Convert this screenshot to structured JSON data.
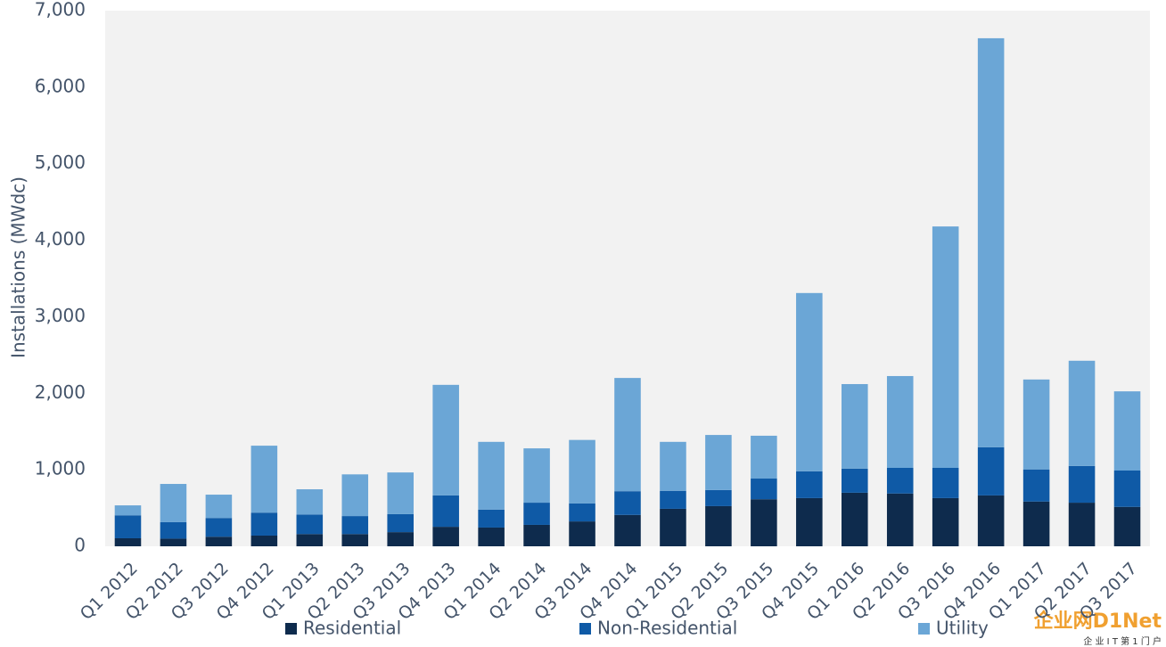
{
  "chart_data": {
    "type": "stacked_bar",
    "y_label": "Installations (MWdc)",
    "categories": [
      "Q1 2012",
      "Q2 2012",
      "Q3 2012",
      "Q4 2012",
      "Q1 2013",
      "Q2 2013",
      "Q3 2013",
      "Q4 2013",
      "Q1 2014",
      "Q2 2014",
      "Q3 2014",
      "Q4 2014",
      "Q1 2015",
      "Q2 2015",
      "Q3 2015",
      "Q4 2015",
      "Q1 2016",
      "Q2 2016",
      "Q3 2016",
      "Q4 2016",
      "Q1 2017",
      "Q2 2017",
      "Q3 2017"
    ],
    "series": [
      {
        "name": "Residential",
        "color": "#0e2b4d",
        "values": [
          105,
          100,
          125,
          140,
          160,
          160,
          185,
          255,
          245,
          280,
          325,
          410,
          490,
          525,
          615,
          630,
          700,
          690,
          630,
          665,
          585,
          570,
          515
        ]
      },
      {
        "name": "Non-Residential",
        "color": "#0f5aa6",
        "values": [
          300,
          215,
          245,
          300,
          255,
          235,
          235,
          410,
          235,
          290,
          235,
          310,
          235,
          210,
          270,
          350,
          315,
          335,
          395,
          630,
          420,
          480,
          475
        ]
      },
      {
        "name": "Utility",
        "color": "#6ba6d6",
        "values": [
          130,
          500,
          305,
          875,
          330,
          545,
          545,
          1445,
          885,
          710,
          830,
          1480,
          640,
          720,
          560,
          2330,
          1105,
          1200,
          3155,
          5345,
          1175,
          1375,
          1035
        ]
      }
    ],
    "ylim": [
      0,
      7000
    ],
    "yticks": [
      0,
      {
        "value": 1000,
        "label": "1,000"
      },
      {
        "value": 2000,
        "label": "2,000"
      },
      {
        "value": 3000,
        "label": "3,000"
      },
      {
        "value": 4000,
        "label": "4,000"
      },
      {
        "value": 5000,
        "label": "5,000"
      },
      {
        "value": 6000,
        "label": "6,000"
      },
      {
        "value": 7000,
        "label": "7,000"
      }
    ],
    "legend": "bottom",
    "plot_background": "#f2f2f2"
  },
  "watermark": {
    "brand": "企业网D1Net",
    "slogan": "企 业 I T 第 1 门 户"
  }
}
